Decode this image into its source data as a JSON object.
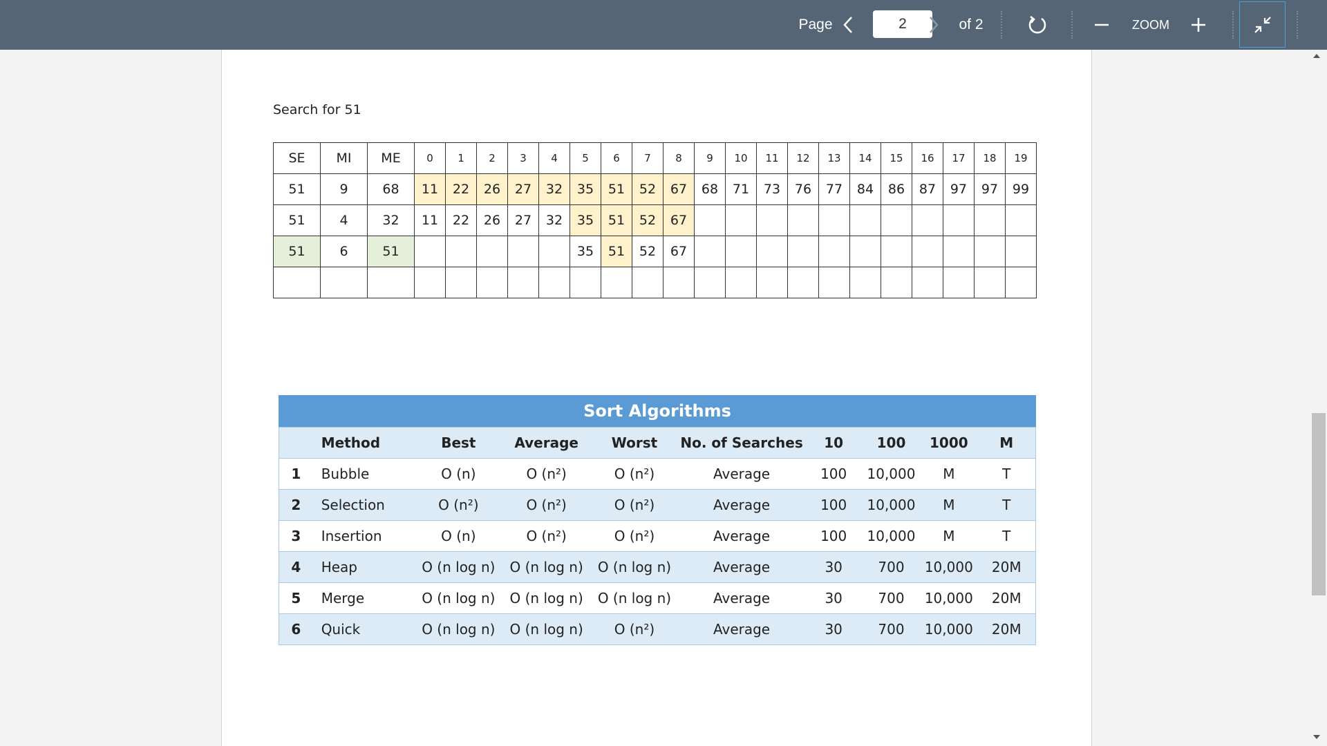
{
  "toolbar": {
    "page_label": "Page",
    "current_page": "2",
    "of_label": "of 2",
    "zoom_label": "ZOOM",
    "icons": [
      "chevron-left-icon",
      "chevron-right-icon",
      "rotate-icon",
      "minus-icon",
      "plus-icon",
      "collapse-icon"
    ]
  },
  "search": {
    "title": "Search for 51",
    "header": [
      "SE",
      "MI",
      "ME",
      "0",
      "1",
      "2",
      "3",
      "4",
      "5",
      "6",
      "7",
      "8",
      "9",
      "10",
      "11",
      "12",
      "13",
      "14",
      "15",
      "16",
      "17",
      "18",
      "19"
    ],
    "rows": [
      [
        "51",
        "9",
        "68",
        "11",
        "22",
        "26",
        "27",
        "32",
        "35",
        "51",
        "52",
        "67",
        "68",
        "71",
        "73",
        "76",
        "77",
        "84",
        "86",
        "87",
        "97",
        "97",
        "99"
      ],
      [
        "51",
        "4",
        "32",
        "11",
        "22",
        "26",
        "27",
        "32",
        "35",
        "51",
        "52",
        "67",
        "",
        "",
        "",
        "",
        "",
        "",
        "",
        "",
        "",
        "",
        ""
      ],
      [
        "51",
        "6",
        "51",
        "",
        "",
        "",
        "",
        "",
        "35",
        "51",
        "52",
        "67",
        "",
        "",
        "",
        "",
        "",
        "",
        "",
        "",
        "",
        "",
        ""
      ],
      [
        "",
        "",
        "",
        "",
        "",
        "",
        "",
        "",
        "",
        "",
        "",
        "",
        "",
        "",
        "",
        "",
        "",
        "",
        "",
        "",
        "",
        "",
        ""
      ]
    ]
  },
  "sort": {
    "title": "Sort Algorithms",
    "headers": [
      "",
      "Method",
      "Best",
      "Average",
      "Worst",
      "No. of Searches",
      "10",
      "100",
      "1000",
      "M"
    ],
    "rows": [
      [
        "1",
        "Bubble",
        "O (n)",
        "O (n²)",
        "O (n²)",
        "Average",
        "100",
        "10,000",
        "M",
        "T"
      ],
      [
        "2",
        "Selection",
        "O (n²)",
        "O (n²)",
        "O (n²)",
        "Average",
        "100",
        "10,000",
        "M",
        "T"
      ],
      [
        "3",
        "Insertion",
        "O (n)",
        "O (n²)",
        "O (n²)",
        "Average",
        "100",
        "10,000",
        "M",
        "T"
      ],
      [
        "4",
        "Heap",
        "O (n log n)",
        "O (n log n)",
        "O (n log n)",
        "Average",
        "30",
        "700",
        "10,000",
        "20M"
      ],
      [
        "5",
        "Merge",
        "O (n log n)",
        "O (n log n)",
        "O (n log n)",
        "Average",
        "30",
        "700",
        "10,000",
        "20M"
      ],
      [
        "6",
        "Quick",
        "O (n log n)",
        "O (n log n)",
        "O (n²)",
        "Average",
        "30",
        "700",
        "10,000",
        "20M"
      ]
    ]
  },
  "colors": {
    "toolbar": "#556575",
    "highlight_yellow": "#fdf2cc",
    "highlight_green": "#e4f0da",
    "header_blue": "#5b9bd5",
    "row_blue": "#ddebf7"
  }
}
